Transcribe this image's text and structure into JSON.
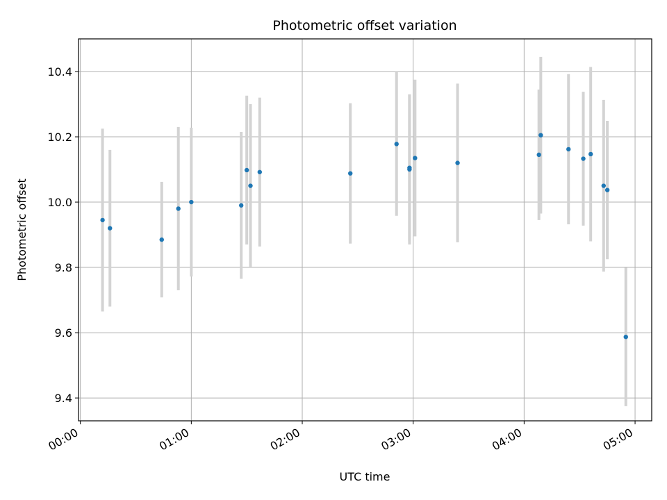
{
  "chart_data": {
    "type": "scatter",
    "title": "Photometric offset variation",
    "xlabel": "UTC time",
    "ylabel": "Photometric offset",
    "x_tick_labels": [
      "00:00",
      "01:00",
      "02:00",
      "03:00",
      "04:00",
      "05:00"
    ],
    "y_tick_labels": [
      "9.4",
      "9.6",
      "9.8",
      "10.0",
      "10.2",
      "10.4"
    ],
    "xlim": [
      "23:59",
      "05:09"
    ],
    "ylim": [
      9.33,
      10.5
    ],
    "grid": true,
    "point_color": "#1f77b4",
    "errorbar_color": "#d3d3d3",
    "series": [
      {
        "points": [
          {
            "x": "00:12",
            "y": 9.945,
            "yerr": 0.28
          },
          {
            "x": "00:16",
            "y": 9.92,
            "yerr": 0.24
          },
          {
            "x": "00:44",
            "y": 9.885,
            "yerr": 0.177
          },
          {
            "x": "00:53",
            "y": 9.98,
            "yerr": 0.25
          },
          {
            "x": "01:00",
            "y": 10.0,
            "yerr": 0.228
          },
          {
            "x": "01:27",
            "y": 9.99,
            "yerr": 0.225
          },
          {
            "x": "01:30",
            "y": 10.098,
            "yerr": 0.228
          },
          {
            "x": "01:32",
            "y": 10.05,
            "yerr": 0.25
          },
          {
            "x": "01:37",
            "y": 10.092,
            "yerr": 0.228
          },
          {
            "x": "02:26",
            "y": 10.088,
            "yerr": 0.215
          },
          {
            "x": "02:51",
            "y": 10.178,
            "yerr": 0.22
          },
          {
            "x": "02:58",
            "y": 10.1,
            "yerr": 0.23
          },
          {
            "x": "02:58",
            "y": 10.105,
            "yerr": 0.225
          },
          {
            "x": "03:01",
            "y": 10.135,
            "yerr": 0.24
          },
          {
            "x": "03:24",
            "y": 10.12,
            "yerr": 0.243
          },
          {
            "x": "04:08",
            "y": 10.145,
            "yerr": 0.2
          },
          {
            "x": "04:09",
            "y": 10.205,
            "yerr": 0.24
          },
          {
            "x": "04:24",
            "y": 10.162,
            "yerr": 0.23
          },
          {
            "x": "04:32",
            "y": 10.133,
            "yerr": 0.205
          },
          {
            "x": "04:36",
            "y": 10.147,
            "yerr": 0.267
          },
          {
            "x": "04:43",
            "y": 10.05,
            "yerr": 0.263
          },
          {
            "x": "04:45",
            "y": 10.037,
            "yerr": 0.212
          },
          {
            "x": "04:55",
            "y": 9.587,
            "yerr": 0.212
          }
        ]
      }
    ]
  }
}
